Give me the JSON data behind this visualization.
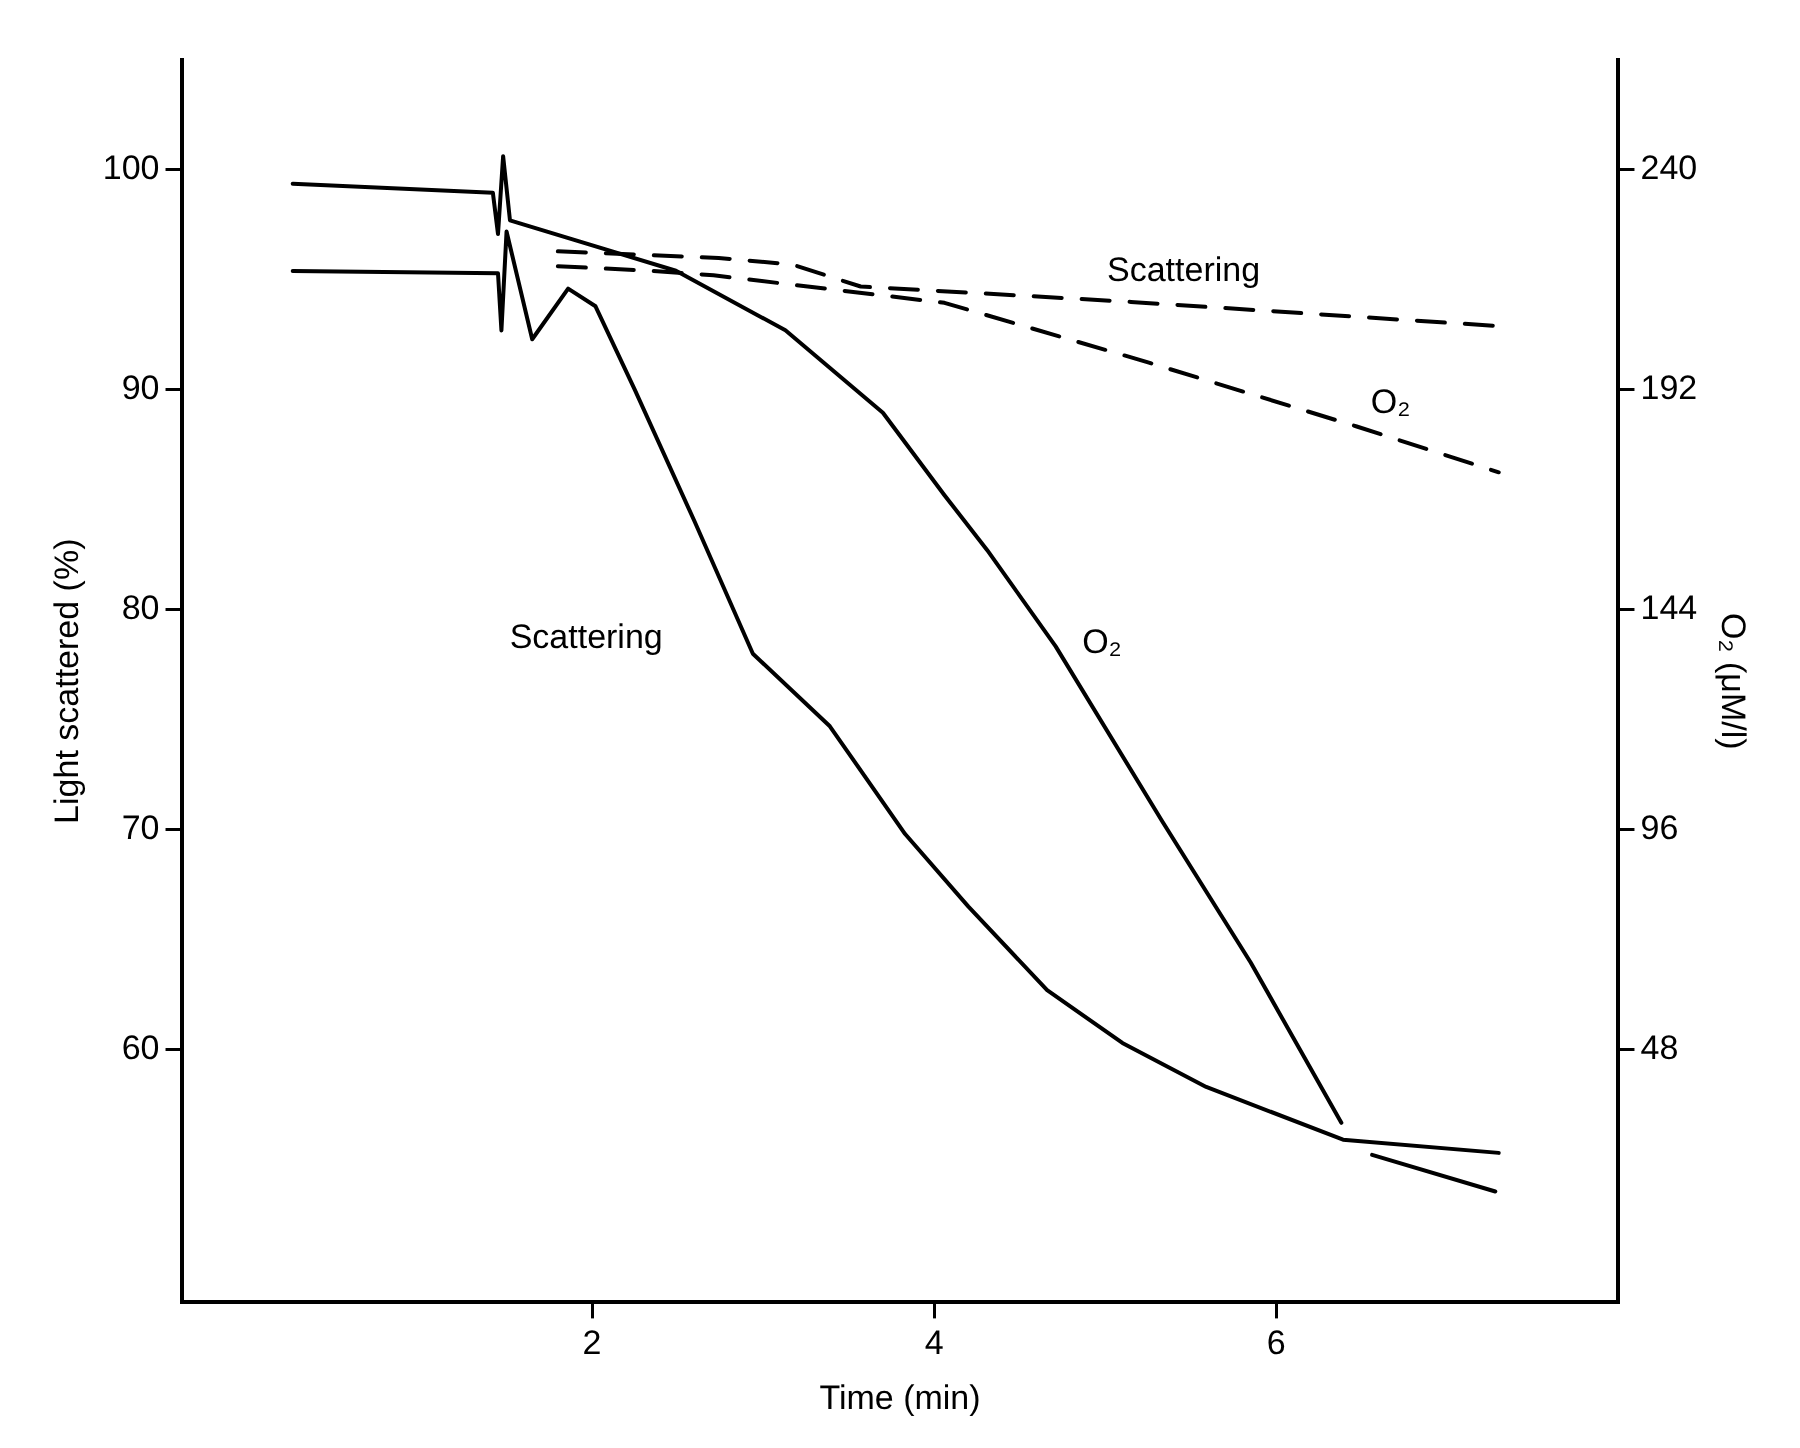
{
  "chart_data": {
    "type": "line",
    "xlabel": "Time (min)",
    "ylabel": "Light scattered (%)",
    "y2label": "O₂ (μM/l)",
    "xlim": [
      -0.4,
      8.0
    ],
    "xticks": [
      2,
      4,
      6
    ],
    "ylim": [
      48.5,
      105
    ],
    "yticks": [
      60,
      70,
      80,
      90,
      100
    ],
    "y2lim": [
      -7.2,
      264
    ],
    "y2ticks": [
      48,
      96,
      144,
      192,
      240
    ],
    "grid": false,
    "legend": false,
    "marker": "none",
    "series": [
      {
        "name": "Scattering",
        "color": "#000000",
        "line_style": "solid",
        "x": [
          0.25,
          1.45,
          1.47,
          1.5,
          1.65,
          1.86,
          2.02,
          2.25,
          2.6,
          2.94,
          3.39,
          3.83,
          4.2,
          4.66,
          5.1,
          5.59,
          6.39,
          7.3
        ],
        "values": [
          95.4,
          95.3,
          92.7,
          97.2,
          92.3,
          94.6,
          93.8,
          90.0,
          84.0,
          78.0,
          74.7,
          69.8,
          66.5,
          62.7,
          60.3,
          58.3,
          55.9,
          55.3
        ]
      },
      {
        "name": "O₂",
        "color": "#000000",
        "line_style": "solid",
        "axis": "y2",
        "x": [
          0.25,
          1.42,
          1.45,
          1.48,
          1.52,
          2.49,
          3.13,
          3.7,
          4.06,
          4.31,
          4.71,
          5.33,
          5.85,
          6.38,
          6.47,
          6.56,
          7.28
        ],
        "values": [
          237,
          235,
          226,
          243,
          229,
          218,
          205,
          187,
          169,
          157,
          136,
          98,
          67,
          32,
          null,
          25,
          17
        ]
      },
      {
        "name": "Scattering",
        "color": "#000000",
        "line_style": "dashed",
        "x": [
          1.8,
          2.74,
          3.17,
          3.57,
          5.15,
          7.3
        ],
        "values": [
          96.3,
          96.0,
          95.7,
          94.7,
          94.0,
          92.9
        ]
      },
      {
        "name": "O₂",
        "color": "#000000",
        "line_style": "dashed",
        "axis": "y2",
        "x": [
          1.8,
          2.33,
          2.71,
          4.06,
          5.25,
          6.47,
          7.3
        ],
        "values": [
          219,
          218,
          217,
          211,
          198,
          184,
          174
        ]
      }
    ]
  }
}
